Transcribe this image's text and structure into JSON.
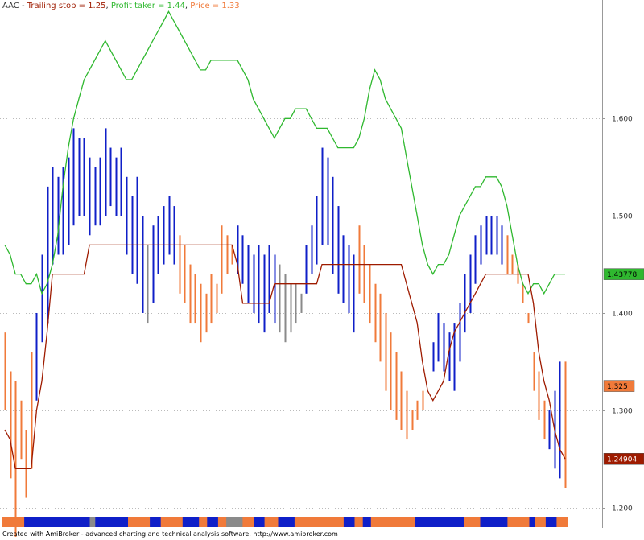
{
  "chart_data": {
    "type": "line",
    "legend": {
      "symbol": "AAC",
      "separator": " - ",
      "entries": [
        {
          "name": "Trailing stop",
          "value_text": "1.25",
          "color": "#9e1b00"
        },
        {
          "name": "Profit taker",
          "value_text": "1.44",
          "color": "#2fb82f"
        },
        {
          "name": "Price",
          "value_text": "1.33",
          "color": "#f07a3a"
        }
      ]
    },
    "ylim": [
      1.184,
      1.707
    ],
    "ytick_labels": [
      "1.600",
      "1.500",
      "1.400",
      "1.300",
      "1.200"
    ],
    "yticks": [
      1.6,
      1.5,
      1.4,
      1.3,
      1.2
    ],
    "grid": true,
    "colors": {
      "up": "#0f1fc8",
      "down": "#f07a3a",
      "neutral": "#8a8a8a",
      "trailing": "#9e1b00",
      "profit": "#2fb82f"
    },
    "last_values": [
      {
        "text": "1.43778",
        "color": "#2fb82f",
        "text_color": "#000000"
      },
      {
        "text": "1.325",
        "color": "#f07a3a",
        "text_color": "#000000"
      },
      {
        "text": "1.24904",
        "color": "#9e1b00",
        "text_color": "#ffffff"
      }
    ],
    "profit_taker": [
      1.47,
      1.46,
      1.44,
      1.44,
      1.43,
      1.43,
      1.44,
      1.42,
      1.43,
      1.45,
      1.48,
      1.53,
      1.57,
      1.6,
      1.62,
      1.64,
      1.65,
      1.66,
      1.67,
      1.68,
      1.67,
      1.66,
      1.65,
      1.64,
      1.64,
      1.65,
      1.66,
      1.67,
      1.68,
      1.69,
      1.7,
      1.71,
      1.7,
      1.69,
      1.68,
      1.67,
      1.66,
      1.65,
      1.65,
      1.66,
      1.66,
      1.66,
      1.66,
      1.66,
      1.66,
      1.65,
      1.64,
      1.62,
      1.61,
      1.6,
      1.59,
      1.58,
      1.59,
      1.6,
      1.6,
      1.61,
      1.61,
      1.61,
      1.6,
      1.59,
      1.59,
      1.59,
      1.58,
      1.57,
      1.57,
      1.57,
      1.57,
      1.58,
      1.6,
      1.63,
      1.65,
      1.64,
      1.62,
      1.61,
      1.6,
      1.59,
      1.56,
      1.53,
      1.5,
      1.47,
      1.45,
      1.44,
      1.45,
      1.45,
      1.46,
      1.48,
      1.5,
      1.51,
      1.52,
      1.53,
      1.53,
      1.54,
      1.54,
      1.54,
      1.53,
      1.51,
      1.48,
      1.45,
      1.43,
      1.42,
      1.43,
      1.43,
      1.42,
      1.43,
      1.44,
      1.44,
      1.44
    ],
    "trailing_stop": [
      1.28,
      1.27,
      1.24,
      1.24,
      1.24,
      1.24,
      1.3,
      1.33,
      1.38,
      1.44,
      1.44,
      1.44,
      1.44,
      1.44,
      1.44,
      1.44,
      1.47,
      1.47,
      1.47,
      1.47,
      1.47,
      1.47,
      1.47,
      1.47,
      1.47,
      1.47,
      1.47,
      1.47,
      1.47,
      1.47,
      1.47,
      1.47,
      1.47,
      1.47,
      1.47,
      1.47,
      1.47,
      1.47,
      1.47,
      1.47,
      1.47,
      1.47,
      1.47,
      1.47,
      1.45,
      1.41,
      1.41,
      1.41,
      1.41,
      1.41,
      1.41,
      1.43,
      1.43,
      1.43,
      1.43,
      1.43,
      1.43,
      1.43,
      1.43,
      1.43,
      1.45,
      1.45,
      1.45,
      1.45,
      1.45,
      1.45,
      1.45,
      1.45,
      1.45,
      1.45,
      1.45,
      1.45,
      1.45,
      1.45,
      1.45,
      1.45,
      1.43,
      1.41,
      1.39,
      1.35,
      1.32,
      1.31,
      1.32,
      1.33,
      1.36,
      1.38,
      1.39,
      1.4,
      1.41,
      1.42,
      1.43,
      1.44,
      1.44,
      1.44,
      1.44,
      1.44,
      1.44,
      1.44,
      1.44,
      1.44,
      1.41,
      1.36,
      1.33,
      1.31,
      1.28,
      1.26,
      1.25
    ],
    "bar_colors": [
      "d",
      "d",
      "d",
      "d",
      "d",
      "d",
      "u",
      "u",
      "u",
      "u",
      "u",
      "u",
      "u",
      "u",
      "u",
      "u",
      "u",
      "u",
      "u",
      "u",
      "u",
      "u",
      "u",
      "u",
      "u",
      "u",
      "u",
      "n",
      "u",
      "u",
      "u",
      "u",
      "u",
      "d",
      "d",
      "d",
      "d",
      "d",
      "d",
      "d",
      "d",
      "d",
      "d",
      "d",
      "u",
      "u",
      "u",
      "u",
      "u",
      "u",
      "u",
      "u",
      "n",
      "n",
      "n",
      "n",
      "n",
      "u",
      "u",
      "u",
      "u",
      "u",
      "u",
      "u",
      "u",
      "u",
      "u",
      "d",
      "d",
      "d",
      "d",
      "d",
      "d",
      "d",
      "d",
      "d",
      "d",
      "d",
      "d",
      "d",
      "d",
      "u",
      "u",
      "u",
      "u",
      "u",
      "u",
      "u",
      "u",
      "u",
      "u",
      "u",
      "u",
      "u",
      "u",
      "d",
      "d",
      "d",
      "d",
      "d",
      "d",
      "d",
      "d",
      "u",
      "u",
      "u",
      "d",
      "d",
      "d"
    ],
    "bar_high": [
      1.38,
      1.34,
      1.33,
      1.31,
      1.28,
      1.36,
      1.4,
      1.46,
      1.53,
      1.55,
      1.54,
      1.55,
      1.56,
      1.59,
      1.58,
      1.58,
      1.56,
      1.55,
      1.56,
      1.59,
      1.57,
      1.56,
      1.57,
      1.54,
      1.52,
      1.54,
      1.5,
      1.47,
      1.49,
      1.5,
      1.51,
      1.52,
      1.51,
      1.48,
      1.47,
      1.45,
      1.44,
      1.43,
      1.42,
      1.44,
      1.43,
      1.49,
      1.48,
      1.47,
      1.49,
      1.48,
      1.47,
      1.46,
      1.47,
      1.46,
      1.47,
      1.46,
      1.45,
      1.44,
      1.43,
      1.43,
      1.42,
      1.47,
      1.49,
      1.52,
      1.57,
      1.56,
      1.54,
      1.51,
      1.48,
      1.47,
      1.46,
      1.49,
      1.47,
      1.45,
      1.43,
      1.42,
      1.4,
      1.38,
      1.36,
      1.34,
      1.32,
      1.3,
      1.31,
      1.32,
      1.31,
      1.37,
      1.4,
      1.39,
      1.38,
      1.39,
      1.41,
      1.44,
      1.46,
      1.48,
      1.49,
      1.5,
      1.5,
      1.5,
      1.49,
      1.48,
      1.46,
      1.45,
      1.43,
      1.4,
      1.36,
      1.34,
      1.31,
      1.3,
      1.32,
      1.35,
      1.35
    ],
    "bar_low": [
      1.3,
      1.23,
      1.17,
      1.25,
      1.21,
      1.24,
      1.31,
      1.37,
      1.39,
      1.45,
      1.46,
      1.46,
      1.47,
      1.49,
      1.5,
      1.5,
      1.48,
      1.49,
      1.49,
      1.5,
      1.51,
      1.5,
      1.5,
      1.46,
      1.44,
      1.43,
      1.4,
      1.39,
      1.41,
      1.44,
      1.45,
      1.46,
      1.45,
      1.42,
      1.41,
      1.39,
      1.39,
      1.37,
      1.38,
      1.39,
      1.4,
      1.42,
      1.44,
      1.45,
      1.44,
      1.43,
      1.41,
      1.4,
      1.39,
      1.38,
      1.4,
      1.39,
      1.38,
      1.37,
      1.38,
      1.39,
      1.4,
      1.42,
      1.44,
      1.45,
      1.47,
      1.47,
      1.44,
      1.42,
      1.41,
      1.4,
      1.38,
      1.42,
      1.41,
      1.39,
      1.37,
      1.35,
      1.32,
      1.3,
      1.29,
      1.28,
      1.27,
      1.28,
      1.29,
      1.3,
      1.31,
      1.34,
      1.35,
      1.34,
      1.33,
      1.32,
      1.35,
      1.38,
      1.4,
      1.43,
      1.45,
      1.46,
      1.46,
      1.46,
      1.45,
      1.44,
      1.44,
      1.43,
      1.41,
      1.39,
      1.32,
      1.29,
      1.27,
      1.26,
      1.24,
      1.23,
      1.22
    ],
    "strip": [
      {
        "c": "d",
        "n": 8
      },
      {
        "c": "u",
        "n": 24
      },
      {
        "c": "n",
        "n": 2
      },
      {
        "c": "u",
        "n": 12
      },
      {
        "c": "d",
        "n": 8
      },
      {
        "c": "u",
        "n": 4
      },
      {
        "c": "d",
        "n": 8
      },
      {
        "c": "u",
        "n": 6
      },
      {
        "c": "d",
        "n": 3
      },
      {
        "c": "u",
        "n": 4
      },
      {
        "c": "d",
        "n": 3
      },
      {
        "c": "n",
        "n": 6
      },
      {
        "c": "d",
        "n": 4
      },
      {
        "c": "u",
        "n": 4
      },
      {
        "c": "d",
        "n": 5
      },
      {
        "c": "u",
        "n": 6
      },
      {
        "c": "d",
        "n": 18
      },
      {
        "c": "u",
        "n": 4
      },
      {
        "c": "d",
        "n": 3
      },
      {
        "c": "u",
        "n": 3
      },
      {
        "c": "d",
        "n": 16
      },
      {
        "c": "u",
        "n": 18
      },
      {
        "c": "d",
        "n": 6
      },
      {
        "c": "u",
        "n": 10
      },
      {
        "c": "d",
        "n": 8
      },
      {
        "c": "u",
        "n": 2
      },
      {
        "c": "d",
        "n": 4
      },
      {
        "c": "u",
        "n": 4
      },
      {
        "c": "d",
        "n": 4
      }
    ]
  },
  "footer": "Created with AmiBroker - advanced charting and technical analysis software. http://www.amibroker.com"
}
